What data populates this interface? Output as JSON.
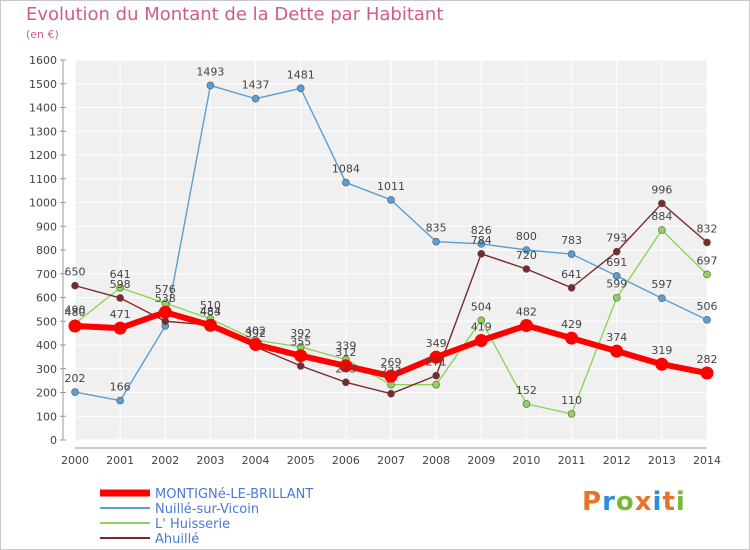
{
  "title": "Evolution du Montant de la Dette par Habitant",
  "subtitle": "(en €)",
  "logo": {
    "text": "Proxiti",
    "colors": [
      "#e8742a",
      "#2a8fd8",
      "#7ab83a",
      "#e8742a",
      "#2a8fd8",
      "#e8742a",
      "#7ab83a"
    ]
  },
  "chart_data": {
    "type": "line",
    "x": [
      2000,
      2001,
      2002,
      2003,
      2004,
      2005,
      2006,
      2007,
      2008,
      2009,
      2010,
      2011,
      2012,
      2013,
      2014
    ],
    "ylim": [
      0,
      1600
    ],
    "yticks": [
      0,
      100,
      200,
      300,
      400,
      500,
      600,
      700,
      800,
      900,
      1000,
      1100,
      1200,
      1300,
      1400,
      1500,
      1600
    ],
    "grid": true,
    "legend_position": "bottom-left",
    "series": [
      {
        "name": "Nuillé-sur-Vicoin",
        "color": "#5a9fd4",
        "values": [
          202,
          166,
          480,
          1493,
          1437,
          1481,
          1084,
          1011,
          835,
          826,
          800,
          783,
          691,
          597,
          506
        ],
        "labels": [
          "202",
          "166",
          "",
          "1493",
          "1437",
          "1481",
          "1084",
          "1011",
          "835",
          "826",
          "800",
          "783",
          "691",
          "597",
          "506"
        ]
      },
      {
        "name": "L' Huisserie",
        "color": "#8ed45a",
        "values": [
          490,
          641,
          576,
          510,
          421,
          392,
          339,
          233,
          233,
          504,
          152,
          110,
          599,
          884,
          697
        ],
        "labels": [
          "490",
          "641",
          "576",
          "510",
          "",
          "392",
          "339",
          "233",
          "",
          "504",
          "152",
          "110",
          "599",
          "884",
          "697"
        ]
      },
      {
        "name": "Ahuillé",
        "color": "#7a2a2a",
        "values": [
          650,
          598,
          500,
          484,
          392,
          312,
          243,
          195,
          271,
          784,
          720,
          641,
          793,
          996,
          832
        ],
        "labels": [
          "650",
          "598",
          "",
          "484",
          "392",
          "",
          "243",
          "",
          "271",
          "784",
          "720",
          "641",
          "793",
          "996",
          "832"
        ]
      },
      {
        "name": "MONTIGNé-LE-BRILLANT",
        "color": "#ff0000",
        "values": [
          480,
          471,
          538,
          483,
          402,
          355,
          312,
          269,
          349,
          419,
          482,
          429,
          374,
          319,
          282
        ],
        "labels": [
          "480",
          "471",
          "538",
          "483",
          "402",
          "355",
          "312",
          "269",
          "349",
          "419",
          "482",
          "429",
          "374",
          "319",
          "282"
        ]
      }
    ],
    "legend": [
      "MONTIGNé-LE-BRILLANT",
      "Nuillé-sur-Vicoin",
      "L' Huisserie",
      "Ahuillé"
    ]
  }
}
